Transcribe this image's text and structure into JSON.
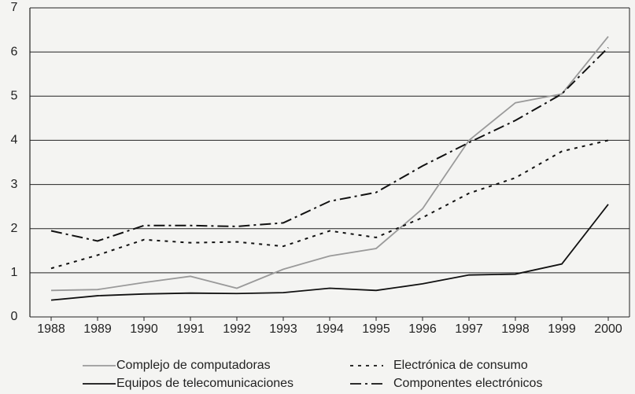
{
  "chart_data": {
    "type": "line",
    "categories": [
      "1988",
      "1989",
      "1990",
      "1991",
      "1992",
      "1993",
      "1994",
      "1995",
      "1996",
      "1997",
      "1998",
      "1999",
      "2000"
    ],
    "series": [
      {
        "name": "Complejo de computadoras",
        "color": "#9a9a9a",
        "dash": "solid",
        "values": [
          0.6,
          0.62,
          0.78,
          0.92,
          0.65,
          1.08,
          1.38,
          1.55,
          2.45,
          4.0,
          4.85,
          5.05,
          6.35
        ]
      },
      {
        "name": "Electrónica de consumo",
        "color": "#111111",
        "dash": "dotted",
        "values": [
          1.1,
          1.4,
          1.75,
          1.68,
          1.7,
          1.6,
          1.95,
          1.8,
          2.25,
          2.8,
          3.15,
          3.75,
          4.0
        ]
      },
      {
        "name": "Equipos de telecomunicaciones",
        "color": "#111111",
        "dash": "solid",
        "values": [
          0.38,
          0.48,
          0.52,
          0.54,
          0.53,
          0.55,
          0.65,
          0.6,
          0.75,
          0.95,
          0.97,
          1.2,
          2.55
        ]
      },
      {
        "name": "Componentes electrónicos",
        "color": "#111111",
        "dash": "dashdot",
        "values": [
          1.95,
          1.72,
          2.07,
          2.07,
          2.05,
          2.13,
          2.62,
          2.82,
          3.42,
          3.95,
          4.45,
          5.05,
          6.1
        ]
      }
    ],
    "ylim": [
      0,
      7
    ],
    "yticks": [
      0,
      1,
      2,
      3,
      4,
      5,
      6,
      7
    ],
    "grid": true
  }
}
